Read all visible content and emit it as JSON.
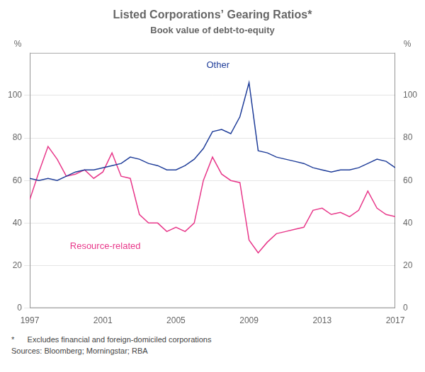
{
  "chart_data": {
    "type": "line",
    "title": "Listed Corporations’ Gearing Ratios*",
    "subtitle": "Book value of debt-to-equity",
    "ylabel": "%",
    "y2label": "%",
    "footnotes": [
      "*      Excludes financial and foreign-domiciled corporations",
      "Sources: Bloomberg; Morningstar; RBA"
    ],
    "x": [
      1997,
      1997.5,
      1998,
      1998.5,
      1999,
      1999.5,
      2000,
      2000.5,
      2001,
      2001.5,
      2002,
      2002.5,
      2003,
      2003.5,
      2004,
      2004.5,
      2005,
      2005.5,
      2006,
      2006.5,
      2007,
      2007.5,
      2008,
      2008.5,
      2009,
      2009.5,
      2010,
      2010.5,
      2011,
      2011.5,
      2012,
      2012.5,
      2013,
      2013.5,
      2014,
      2014.5,
      2015,
      2015.5,
      2016,
      2016.5,
      2017
    ],
    "series": [
      {
        "name": "Other",
        "color": "#1f3d99",
        "values": [
          61,
          60,
          61,
          60,
          62,
          64,
          65,
          65,
          66,
          67,
          68,
          71,
          70,
          68,
          67,
          65,
          65,
          67,
          70,
          75,
          83,
          84,
          82,
          90,
          106,
          74,
          73,
          71,
          70,
          69,
          68,
          66,
          65,
          64,
          65,
          65,
          66,
          68,
          70,
          69,
          66
        ]
      },
      {
        "name": "Resource-related",
        "color": "#e8388a",
        "values": [
          51,
          64,
          76,
          70,
          62,
          63,
          65,
          61,
          64,
          73,
          62,
          61,
          44,
          40,
          40,
          36,
          38,
          36,
          40,
          60,
          71,
          63,
          60,
          59,
          32,
          26,
          31,
          35,
          36,
          37,
          38,
          46,
          47,
          44,
          45,
          43,
          46,
          55,
          47,
          44,
          43
        ]
      }
    ],
    "annotations": [
      {
        "text": "Other",
        "x": 2007.3,
        "y": 112,
        "color": "#1f3d99"
      },
      {
        "text": "Resource-related",
        "x": 1999.2,
        "y": 31,
        "color": "#e8388a"
      }
    ],
    "xlim": [
      1997,
      2017
    ],
    "xticks": [
      1997,
      2001,
      2005,
      2009,
      2013,
      2017
    ],
    "ylim": [
      0,
      120
    ],
    "yticks": [
      0,
      20,
      40,
      60,
      80,
      100
    ],
    "y2lim": [
      0,
      120
    ],
    "y2ticks": [
      0,
      20,
      40,
      60,
      80,
      100
    ],
    "grid": true
  }
}
